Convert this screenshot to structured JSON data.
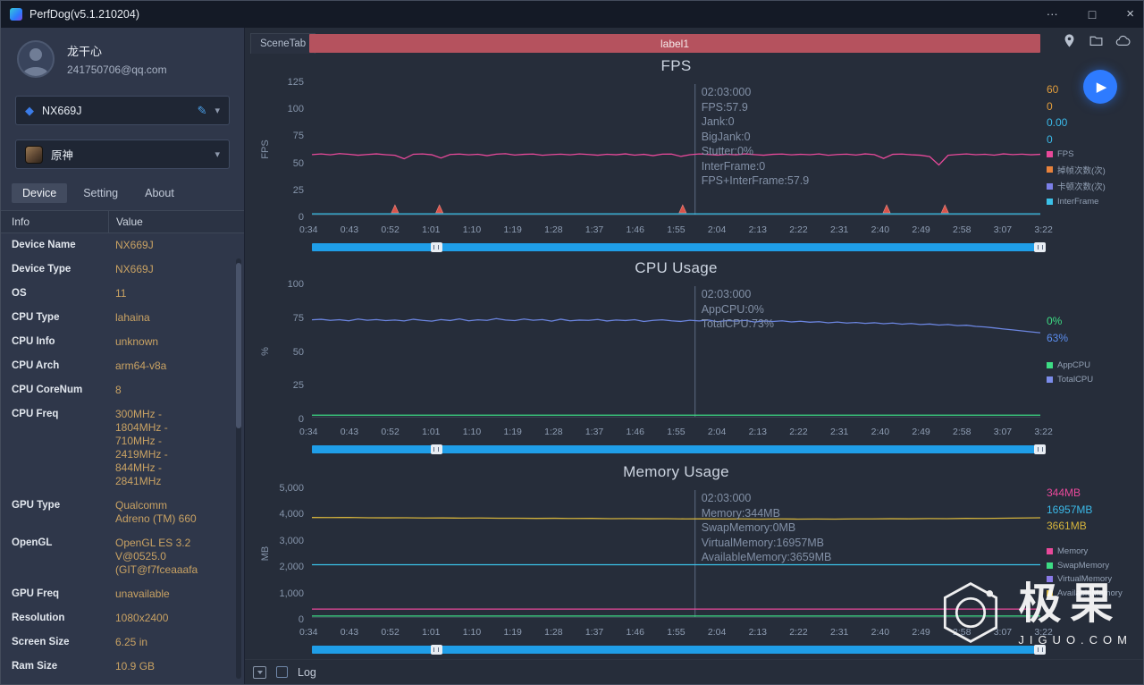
{
  "colors": {
    "accent": "#2e7bff",
    "scrubber": "#1f9ee8",
    "label-red": "#b5525e",
    "value-gold": "#c9a263"
  },
  "titlebar": {
    "title": "PerfDog(v5.1.210204)",
    "more_label": "···",
    "maximize_label": "□",
    "close_label": "×"
  },
  "sidebar": {
    "user": {
      "name": "龙干心",
      "email": "241750706@qq.com"
    },
    "device_select": {
      "value": "NX669J"
    },
    "app_select": {
      "value": "原神"
    },
    "tabs": [
      {
        "label": "Device",
        "active": true
      },
      {
        "label": "Setting",
        "active": false
      },
      {
        "label": "About",
        "active": false
      }
    ],
    "table": {
      "headers": [
        "Info",
        "Value"
      ],
      "rows": [
        {
          "label": "Device Name",
          "value": "NX669J"
        },
        {
          "label": "Device Type",
          "value": "NX669J"
        },
        {
          "label": "OS",
          "value": "11"
        },
        {
          "label": "CPU Type",
          "value": "lahaina"
        },
        {
          "label": "CPU Info",
          "value": "unknown"
        },
        {
          "label": "CPU Arch",
          "value": "arm64-v8a"
        },
        {
          "label": "CPU CoreNum",
          "value": "8"
        },
        {
          "label": "CPU Freq",
          "value": "300MHz -\n1804MHz -\n710MHz -\n2419MHz -\n844MHz -\n2841MHz"
        },
        {
          "label": "GPU Type",
          "value": "Qualcomm\nAdreno (TM) 660"
        },
        {
          "label": "OpenGL",
          "value": "OpenGL ES 3.2\nV@0525.0\n(GIT@f7fceaaafa"
        },
        {
          "label": "GPU Freq",
          "value": "unavailable"
        },
        {
          "label": "Resolution",
          "value": "1080x2400"
        },
        {
          "label": "Screen Size",
          "value": "6.25 in"
        },
        {
          "label": "Ram Size",
          "value": "10.9 GB"
        }
      ]
    }
  },
  "main": {
    "scene_tab": "SceneTab",
    "label_bar": "label1",
    "log_label": "Log"
  },
  "watermark": {
    "brand": "极果",
    "domain": "JIGUO.COM"
  },
  "chart_data": [
    {
      "type": "line",
      "title": "FPS",
      "ylabel": "FPS",
      "ylim": [
        0,
        125
      ],
      "yticks": [
        "0",
        "25",
        "50",
        "75",
        "100",
        "125"
      ],
      "x_labels": [
        "0:34",
        "0:43",
        "0:52",
        "1:01",
        "1:10",
        "1:19",
        "1:28",
        "1:37",
        "1:46",
        "1:55",
        "2:04",
        "2:13",
        "2:22",
        "2:31",
        "2:40",
        "2:49",
        "2:58",
        "3:07",
        "3:22"
      ],
      "cursor_frac": 0.526,
      "markers": [
        0.114,
        0.175,
        0.509,
        0.789,
        0.869
      ],
      "series": [
        {
          "name": "FPS",
          "color": "#e8499a",
          "values": [
            57.5,
            58.1,
            57.2,
            58.4,
            57.8,
            56.9,
            57.6,
            58.2,
            57.4,
            56.8,
            53.5,
            57.8,
            58.1,
            57.3,
            54.2,
            57.6,
            58.0,
            57.2,
            57.8,
            56.5,
            57.9,
            58.3,
            57.1,
            57.7,
            58.0,
            56.8,
            57.5,
            57.9,
            57.2,
            58.1,
            57.6,
            56.9,
            57.8,
            57.3,
            58.2,
            57.0,
            57.7,
            56.5,
            57.9,
            58.0,
            55.8,
            57.4,
            58.1,
            57.6,
            57.0,
            57.8,
            57.3,
            58.2,
            57.5,
            56.9,
            57.7,
            58.0,
            57.2,
            57.8,
            57.4,
            58.1,
            56.8,
            57.6,
            57.9,
            57.1,
            58.2,
            57.5,
            53.8,
            57.7,
            58.0,
            57.3,
            56.9,
            55.5,
            47.5,
            56.8,
            57.6,
            58.1,
            57.4,
            57.8,
            57.0,
            58.2,
            57.5,
            57.9,
            57.3,
            57.7
          ]
        },
        {
          "name": "InterFrame",
          "color": "#3bc1e8",
          "values": [
            0.8,
            0.8
          ]
        }
      ],
      "tooltip": [
        "02:03:000",
        "FPS:57.9",
        "Jank:0",
        "BigJank:0",
        "Stutter:0%",
        "InterFrame:0",
        "FPS+InterFrame:57.9"
      ],
      "stats": [
        {
          "value": "60",
          "color": "#e09c3c"
        },
        {
          "value": "0",
          "color": "#e09c3c"
        },
        {
          "value": "0.00",
          "color": "#3bb9e8"
        },
        {
          "value": "0",
          "color": "#3bb9e8"
        }
      ],
      "legend": [
        {
          "label": "FPS",
          "color": "#e8499a"
        },
        {
          "label": "掉帧次数(次)",
          "color": "#e8823c"
        },
        {
          "label": "卡顿次数(次)",
          "color": "#7b7fe8"
        },
        {
          "label": "InterFrame",
          "color": "#3bc1e8"
        }
      ]
    },
    {
      "type": "line",
      "title": "CPU Usage",
      "ylabel": "%",
      "ylim": [
        0,
        100
      ],
      "yticks": [
        "0",
        "25",
        "50",
        "75",
        "100"
      ],
      "x_labels": [
        "0:34",
        "0:43",
        "0:52",
        "1:01",
        "1:10",
        "1:19",
        "1:28",
        "1:37",
        "1:46",
        "1:55",
        "2:04",
        "2:13",
        "2:22",
        "2:31",
        "2:40",
        "2:49",
        "2:58",
        "3:07",
        "3:22"
      ],
      "cursor_frac": 0.526,
      "series": [
        {
          "name": "TotalCPU",
          "color": "#6b85e0",
          "values": [
            74.2,
            74.6,
            73.8,
            74.3,
            73.5,
            74.8,
            73.9,
            74.4,
            73.6,
            74.1,
            73.4,
            74.6,
            73.8,
            73.2,
            74.4,
            73.7,
            74.9,
            73.5,
            74.2,
            73.8,
            75.2,
            74.1,
            73.6,
            74.8,
            73.9,
            74.4,
            73.2,
            74.7,
            73.5,
            74.0,
            73.8,
            74.5,
            73.3,
            74.1,
            73.7,
            74.3,
            72.9,
            73.8,
            74.2,
            73.5,
            73.0,
            73.9,
            73.4,
            74.1,
            72.8,
            73.6,
            73.2,
            73.8,
            72.5,
            73.3,
            72.9,
            73.5,
            72.6,
            73.1,
            72.4,
            72.8,
            71.9,
            72.5,
            71.8,
            72.2,
            71.5,
            72.0,
            71.2,
            71.8,
            70.9,
            71.4,
            70.6,
            71.0,
            70.2,
            70.6,
            69.8,
            70.1,
            69.2,
            68.8,
            68.0,
            67.2,
            66.5,
            65.8,
            65.0,
            64.3
          ]
        },
        {
          "name": "AppCPU",
          "color": "#3ddc84",
          "values": [
            1.2,
            1.2
          ]
        }
      ],
      "tooltip": [
        "02:03:000",
        "AppCPU:0%",
        "TotalCPU:73%"
      ],
      "stats": [
        {
          "value": "0%",
          "color": "#3ddc84"
        },
        {
          "value": "63%",
          "color": "#5b8dee"
        }
      ],
      "legend": [
        {
          "label": "AppCPU",
          "color": "#3ddc84"
        },
        {
          "label": "TotalCPU",
          "color": "#7b8cea"
        }
      ]
    },
    {
      "type": "line",
      "title": "Memory Usage",
      "ylabel": "MB",
      "ylim": [
        0,
        5000
      ],
      "yticks": [
        "0",
        "1,000",
        "2,000",
        "3,000",
        "4,000",
        "5,000"
      ],
      "x_labels": [
        "0:34",
        "0:43",
        "0:52",
        "1:01",
        "1:10",
        "1:19",
        "1:28",
        "1:37",
        "1:46",
        "1:55",
        "2:04",
        "2:13",
        "2:22",
        "2:31",
        "2:40",
        "2:49",
        "2:58",
        "3:07",
        "3:22"
      ],
      "cursor_frac": 0.526,
      "series": [
        {
          "name": "AvailableMemory",
          "color": "#d4b33c",
          "values": [
            3920,
            3915,
            3922,
            3910,
            3905,
            3908,
            3900,
            3903,
            3895,
            3898,
            3890,
            3893,
            3885,
            3888,
            3880,
            3883,
            3875,
            3878,
            3870,
            3873,
            3865,
            3868,
            3860,
            3864,
            3858,
            3862,
            3856,
            3860,
            3858,
            3865,
            3862,
            3870,
            3868,
            3876,
            3874,
            3884,
            3882,
            3892,
            3898,
            3908
          ]
        },
        {
          "name": "VirtualMemory",
          "color": "#3bc1e8",
          "values": [
            2060,
            2060
          ]
        },
        {
          "name": "Memory",
          "color": "#e8499a",
          "values": [
            310,
            310
          ]
        },
        {
          "name": "SwapMemory",
          "color": "#3ddc84",
          "values": [
            40,
            40
          ]
        }
      ],
      "tooltip": [
        "02:03:000",
        "Memory:344MB",
        "SwapMemory:0MB",
        "VirtualMemory:16957MB",
        "AvailableMemory:3659MB"
      ],
      "stats": [
        {
          "value": "344MB",
          "color": "#e8499a"
        },
        {
          "value": "16957MB",
          "color": "#3bb9e8"
        },
        {
          "value": "3661MB",
          "color": "#d4b33c"
        }
      ],
      "legend": [
        {
          "label": "Memory",
          "color": "#e8499a"
        },
        {
          "label": "SwapMemory",
          "color": "#3ddc84"
        },
        {
          "label": "VirtualMemory",
          "color": "#8a7ae8"
        },
        {
          "label": "AvailableMemory",
          "color": "#d4b33c"
        }
      ]
    }
  ]
}
